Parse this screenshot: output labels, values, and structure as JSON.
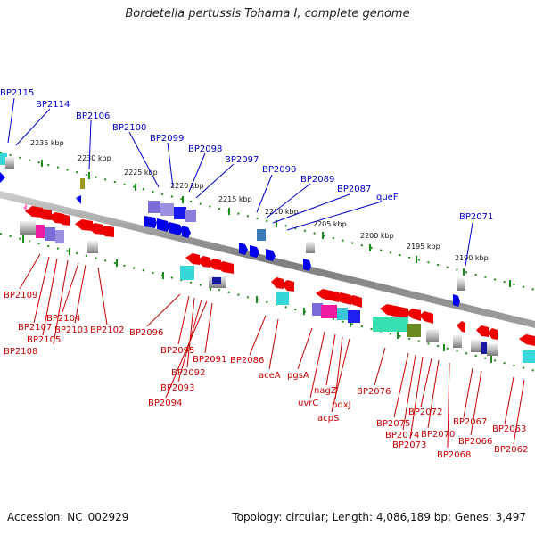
{
  "title": "Bordetella pertussis Tohama I, complete genome",
  "accession": "Accession: NC_002929",
  "topology": "Topology: circular; Length: 4,086,189 bp; Genes: 3,497",
  "colors": {
    "backbone": "#888888",
    "forward_label": "#0000c8",
    "reverse_label": "#c80000",
    "tick": "#1a8a1a",
    "gene_arrow": "#ff0000"
  },
  "kbp_labels": [
    "2235 kbp",
    "2230 kbp",
    "2225 kbp",
    "2220 kbp",
    "2215 kbp",
    "2210 kbp",
    "2205 kbp",
    "2200 kbp",
    "2195 kbp",
    "2190 kbp"
  ],
  "upper_labels": [
    "BP2115",
    "BP2114",
    "BP2106",
    "BP2100",
    "BP2099",
    "BP2098",
    "BP2097",
    "BP2090",
    "BP2089",
    "BP2087",
    "queF",
    "BP2071"
  ],
  "lower_labels": [
    "BP2109",
    "BP2107",
    "BP2104",
    "BP2102",
    "BP2108",
    "BP2105",
    "BP2103",
    "BP2096",
    "BP2095",
    "BP2092",
    "BP2093",
    "BP2094",
    "BP2091",
    "BP2086",
    "aceA",
    "pgsA",
    "uvrC",
    "nagZ",
    "pdxJ",
    "acpS",
    "BP2076",
    "BP2075",
    "BP2074",
    "BP2073",
    "BP2072",
    "BP2070",
    "BP2068",
    "BP2067",
    "BP2066",
    "BP2063",
    "BP2062"
  ]
}
